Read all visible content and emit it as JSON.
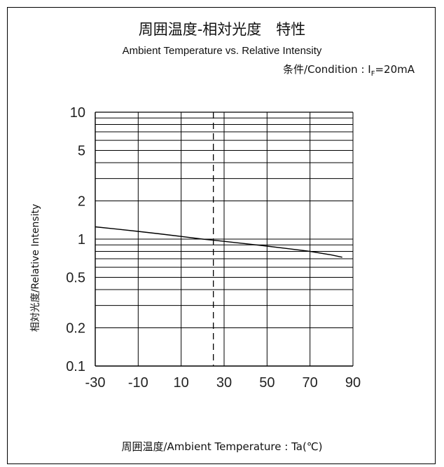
{
  "chart_data": {
    "type": "line",
    "title": "周囲温度-相対光度　特性",
    "subtitle": "Ambient Temperature vs. Relative Intensity",
    "condition": {
      "prefix": "条件/Condition : I",
      "subscript": "F",
      "suffix": "=20mA"
    },
    "xlabel": "周囲温度/Ambient Temperature : Ta(℃)",
    "ylabel": "相対光度/Relative Intensity",
    "y_scale": "log",
    "xlim": [
      -30,
      90
    ],
    "ylim": [
      0.1,
      10
    ],
    "x_ticks": [
      -30,
      -10,
      10,
      30,
      50,
      70,
      90
    ],
    "x_tick_labels": [
      "-30",
      "-10",
      "10",
      "30",
      "50",
      "70",
      "90"
    ],
    "y_ticks": [
      0.1,
      0.2,
      0.5,
      1,
      2,
      5,
      10
    ],
    "y_tick_labels": [
      "0.1",
      "0.2",
      "0.5",
      "1",
      "2",
      "5",
      "10"
    ],
    "grid": true,
    "reference_line": {
      "x": 25,
      "style": "dashed"
    },
    "series": [
      {
        "x": [
          -30,
          -20,
          -10,
          0,
          10,
          20,
          25,
          30,
          40,
          50,
          60,
          70,
          80,
          85
        ],
        "y": [
          1.25,
          1.2,
          1.15,
          1.1,
          1.05,
          1.0,
          0.98,
          0.96,
          0.92,
          0.88,
          0.84,
          0.8,
          0.75,
          0.72
        ]
      }
    ]
  }
}
